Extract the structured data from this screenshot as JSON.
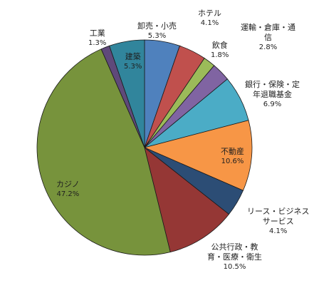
{
  "chart_data": {
    "type": "pie",
    "title": "",
    "start_angle_deg": 0,
    "direction": "clockwise",
    "slices": [
      {
        "label": "卸売・小売",
        "label_lines": [
          "卸売・小売"
        ],
        "value": 5.3,
        "value_label": "5.3%",
        "color": "#4f81bd"
      },
      {
        "label": "ホテル",
        "label_lines": [
          "ホテル"
        ],
        "value": 4.1,
        "value_label": "4.1%",
        "color": "#c0504d"
      },
      {
        "label": "飲食",
        "label_lines": [
          "飲食"
        ],
        "value": 1.8,
        "value_label": "1.8%",
        "color": "#9bbb59"
      },
      {
        "label": "運輸・倉庫・通信",
        "label_lines": [
          "運輸・倉庫・通",
          "信"
        ],
        "value": 2.8,
        "value_label": "2.8%",
        "color": "#8064a2"
      },
      {
        "label": "銀行・保険・定年退職基金",
        "label_lines": [
          "銀行・保険・定",
          "年退職基金"
        ],
        "value": 6.9,
        "value_label": "6.9%",
        "color": "#4bacc6"
      },
      {
        "label": "不動産",
        "label_lines": [
          "不動産"
        ],
        "value": 10.6,
        "value_label": "10.6%",
        "color": "#f79646"
      },
      {
        "label": "リース・ビジネスサービス",
        "label_lines": [
          "リース・ビジネス",
          "サービス"
        ],
        "value": 4.1,
        "value_label": "4.1%",
        "color": "#2c4d75"
      },
      {
        "label": "公共行政・教育・医療・衛生",
        "label_lines": [
          "公共行政・教",
          "育・医療・衛生"
        ],
        "value": 10.5,
        "value_label": "10.5%",
        "color": "#953735"
      },
      {
        "label": "カジノ",
        "label_lines": [
          "カジノ"
        ],
        "value": 47.2,
        "value_label": "47.2%",
        "color": "#77933c"
      },
      {
        "label": "工業",
        "label_lines": [
          "工業"
        ],
        "value": 1.3,
        "value_label": "1.3%",
        "color": "#5f497a"
      },
      {
        "label": "建築",
        "label_lines": [
          "建築"
        ],
        "value": 5.3,
        "value_label": "5.3%",
        "color": "#31859c"
      }
    ],
    "legend": "none"
  }
}
